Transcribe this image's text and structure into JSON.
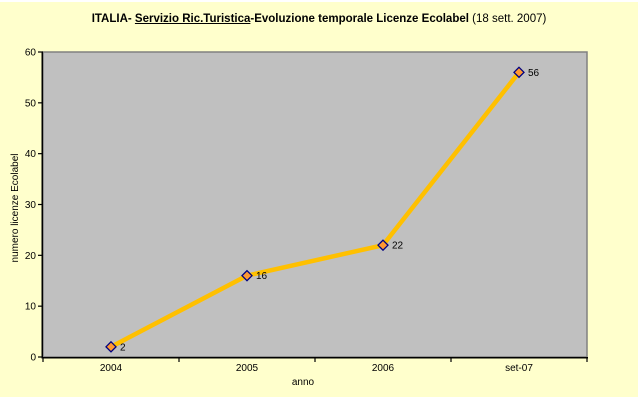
{
  "chart_data": {
    "type": "line",
    "title": "ITALIA- Servizio Ric.Turistica-Evoluzione temporale Licenze Ecolabel (18 sett. 2007)",
    "title_segments": [
      {
        "text": "ITALIA- ",
        "bold": true,
        "underline": false
      },
      {
        "text": "Servizio Ric.Turistica",
        "bold": true,
        "underline": true
      },
      {
        "text": "-Evoluzione temporale Licenze Ecolabel ",
        "bold": true,
        "underline": false
      },
      {
        "text": "(18 sett. 2007)",
        "bold": false,
        "underline": false
      }
    ],
    "categories": [
      "2004",
      "2005",
      "2006",
      "set-07"
    ],
    "values": [
      2,
      16,
      22,
      56
    ],
    "data_labels": [
      "2",
      "16",
      "22",
      "56"
    ],
    "xlabel": "anno",
    "ylabel": "numero licenze Ecolabel",
    "ylim": [
      0,
      60
    ],
    "yticks": [
      0,
      10,
      20,
      30,
      40,
      50,
      60
    ],
    "grid": false,
    "legend": "none",
    "colors": {
      "chart_background": "#FFFFCC",
      "plot_background": "#C0C0C0",
      "plot_border": "#808080",
      "line": "#FFC000",
      "marker_fill": "#FF9933",
      "marker_border": "#000080",
      "axis": "#000000",
      "text": "#000000"
    }
  }
}
